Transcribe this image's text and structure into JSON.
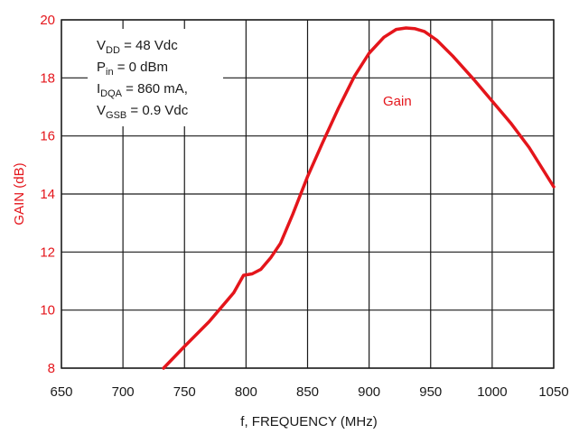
{
  "chart_data": {
    "type": "line",
    "title": "",
    "xlabel": "f, FREQUENCY (MHz)",
    "ylabel": "GAIN (dB)",
    "xlim": [
      650,
      1050
    ],
    "ylim": [
      8,
      20
    ],
    "x_ticks": [
      650,
      700,
      750,
      800,
      850,
      900,
      950,
      1000,
      1050
    ],
    "y_ticks": [
      8,
      10,
      12,
      14,
      16,
      18,
      20
    ],
    "grid": true,
    "legend": "none",
    "colors": {
      "series": "#e4151b",
      "grid": "#1a1a1a",
      "axis_text": "#1a1a1a",
      "ylabel": "#e4151b"
    },
    "series": [
      {
        "name": "Gain",
        "x": [
          733,
          750,
          770,
          790,
          798,
          805,
          812,
          820,
          828,
          838,
          850,
          862,
          875,
          888,
          900,
          912,
          922,
          930,
          937,
          945,
          955,
          968,
          985,
          1000,
          1015,
          1030,
          1050
        ],
        "y": [
          8.0,
          8.75,
          9.6,
          10.6,
          11.2,
          11.25,
          11.4,
          11.8,
          12.3,
          13.3,
          14.6,
          15.75,
          16.95,
          18.05,
          18.85,
          19.4,
          19.67,
          19.72,
          19.7,
          19.6,
          19.3,
          18.75,
          17.95,
          17.2,
          16.45,
          15.6,
          14.25
        ]
      }
    ],
    "annotations": {
      "series_label": "Gain",
      "conditions": [
        {
          "main": "V",
          "sub": "DD",
          "rest": " = 48 Vdc"
        },
        {
          "main": "P",
          "sub": "in",
          "rest": " = 0 dBm"
        },
        {
          "main": "I",
          "sub": "DQA",
          "rest": " = 860 mA,"
        },
        {
          "main": "V",
          "sub": "GSB",
          "rest": " = 0.9 Vdc"
        }
      ]
    }
  }
}
